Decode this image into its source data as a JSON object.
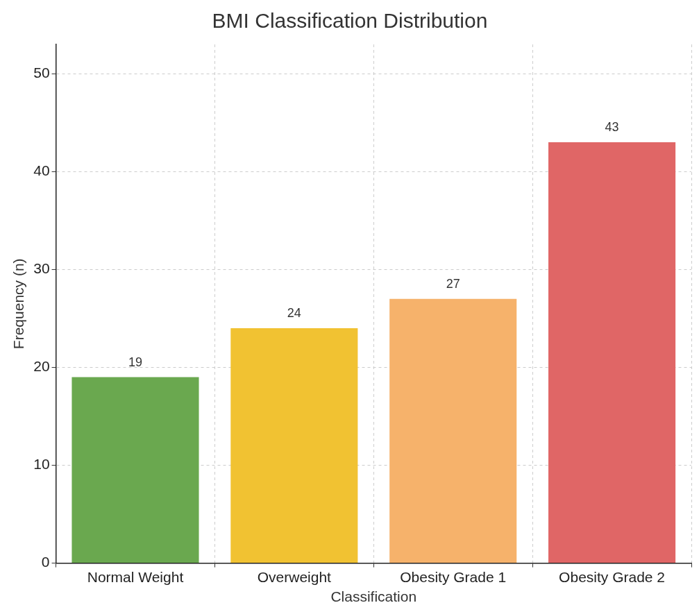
{
  "chart_data": {
    "type": "bar",
    "title": "BMI Classification Distribution",
    "xlabel": "Classification",
    "ylabel": "Frequency (n)",
    "categories": [
      "Normal Weight",
      "Overweight",
      "Obesity Grade 1",
      "Obesity Grade 2"
    ],
    "values": [
      19,
      24,
      27,
      43
    ],
    "colors": [
      "#6aa84f",
      "#f1c232",
      "#f6b26b",
      "#e06666"
    ],
    "ylim": [
      0,
      53
    ],
    "yticks": [
      0,
      10,
      20,
      30,
      40,
      50
    ],
    "grid": true,
    "data_labels": true
  }
}
